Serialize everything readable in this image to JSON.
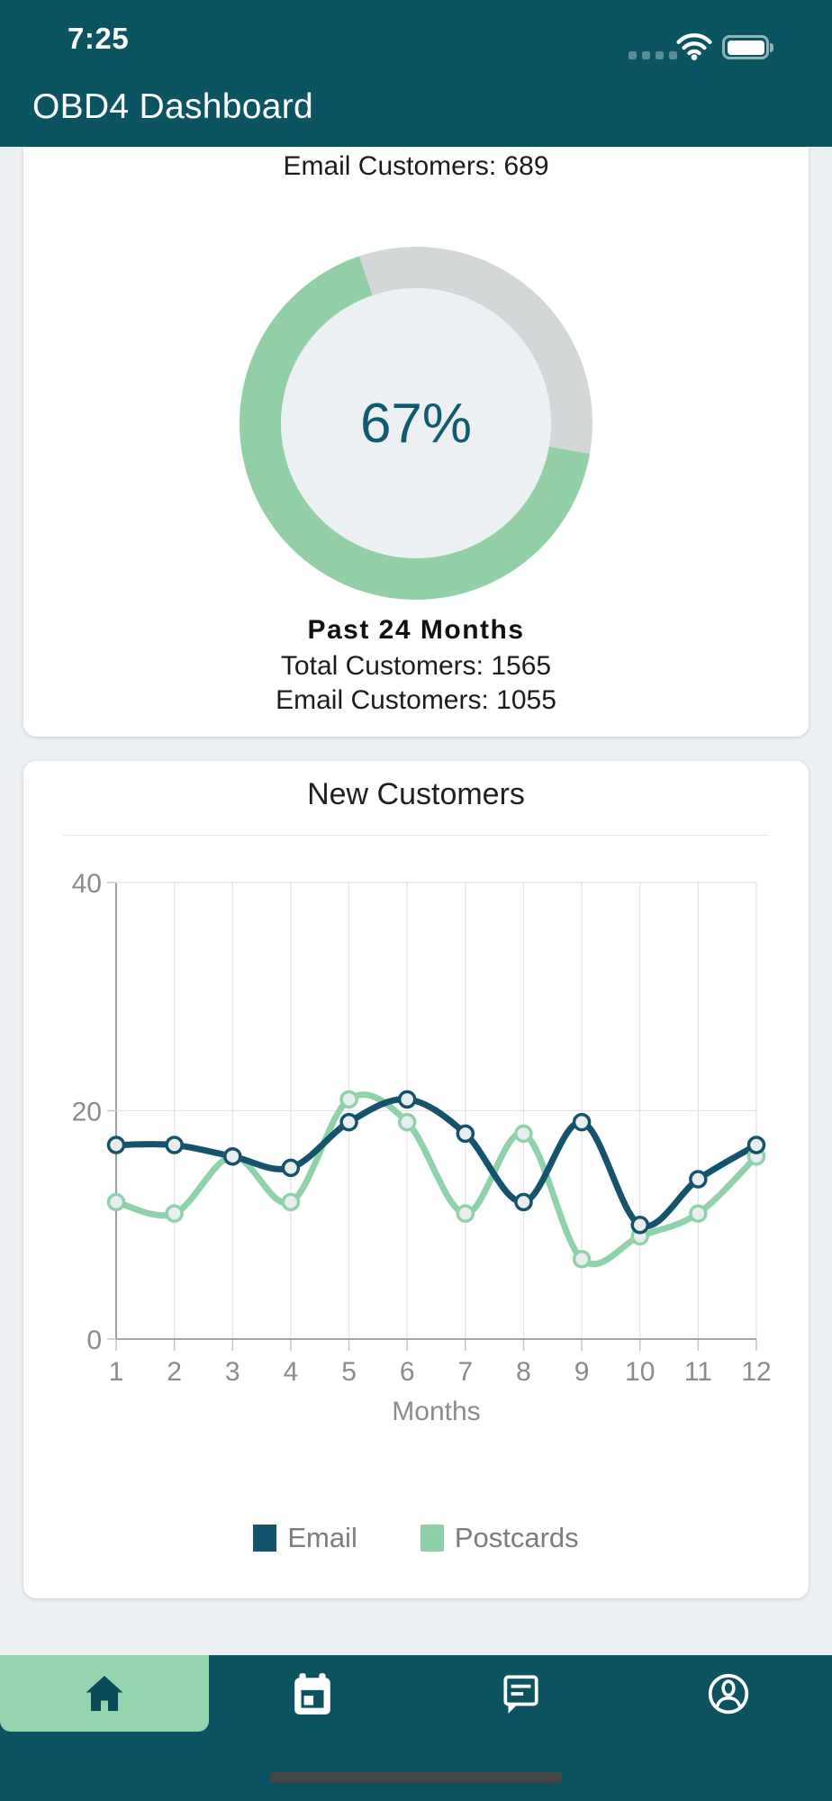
{
  "status_bar": {
    "time": "7:25",
    "icons": [
      "cellular-signal-dots",
      "wifi",
      "battery-full"
    ]
  },
  "header": {
    "title": "OBD4 Dashboard"
  },
  "summary_card": {
    "top_stat": "Email Customers: 689",
    "donut": {
      "percent": 67,
      "percent_label": "67%",
      "start_angle_deg": 100,
      "filled_color": "#92cfa7",
      "track_color": "#d4d7d7",
      "hole_color": "#edf0f3"
    },
    "period_label": "Past 24 Months",
    "stats": [
      "Total Customers: 1565",
      "Email Customers: 1055"
    ]
  },
  "chart_card": {
    "title": "New Customers"
  },
  "chart_data": {
    "type": "line",
    "x": [
      1,
      2,
      3,
      4,
      5,
      6,
      7,
      8,
      9,
      10,
      11,
      12
    ],
    "xlabel": "Months",
    "ylim": [
      0,
      40
    ],
    "yticks": [
      0,
      20,
      40
    ],
    "grid": true,
    "smooth": true,
    "legend_position": "bottom",
    "series": [
      {
        "name": "Email",
        "color": "#14536b",
        "values": [
          17,
          17,
          16,
          15,
          19,
          21,
          18,
          12,
          19,
          10,
          14,
          17
        ]
      },
      {
        "name": "Postcards",
        "color": "#8fd1ab",
        "values": [
          12,
          11,
          16,
          12,
          21,
          19,
          11,
          18,
          7,
          9,
          11,
          16
        ]
      }
    ],
    "marker_fill": "#e9edf0",
    "grid_color": "#e2e2e2",
    "axis_color": "#a6a6a6",
    "tick_label_color": "#8b8b8b"
  },
  "bottom_nav": {
    "active_index": 0,
    "active_bg": "#93d4ae",
    "items": [
      {
        "icon": "home",
        "active": true
      },
      {
        "icon": "calendar",
        "active": false
      },
      {
        "icon": "chat",
        "active": false
      },
      {
        "icon": "profile",
        "active": false
      }
    ]
  }
}
